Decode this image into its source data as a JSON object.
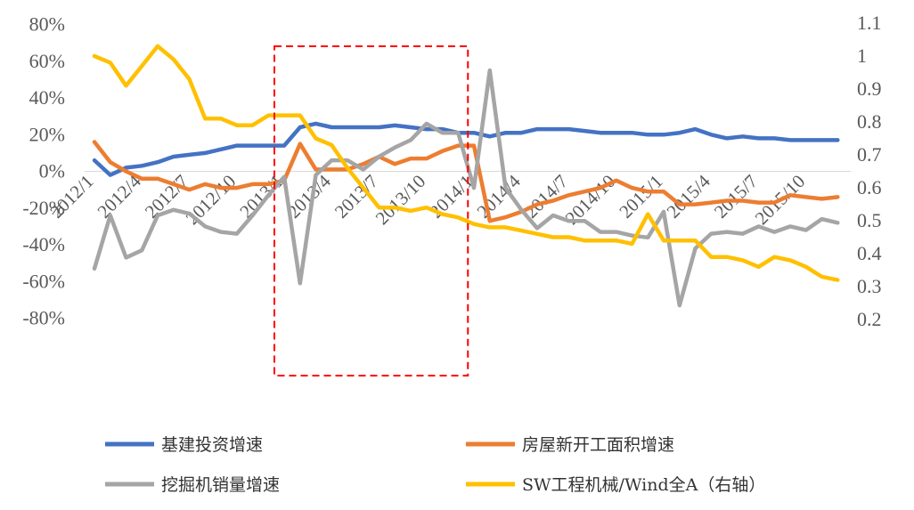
{
  "chart_data": {
    "type": "line",
    "title": "",
    "x": [
      "2012/1",
      "2012/2",
      "2012/3",
      "2012/4",
      "2012/5",
      "2012/6",
      "2012/7",
      "2012/8",
      "2012/9",
      "2012/10",
      "2012/11",
      "2012/12",
      "2013/1",
      "2013/2",
      "2013/3",
      "2013/4",
      "2013/5",
      "2013/6",
      "2013/7",
      "2013/8",
      "2013/9",
      "2013/10",
      "2013/11",
      "2013/12",
      "2014/1",
      "2014/2",
      "2014/3",
      "2014/4",
      "2014/5",
      "2014/6",
      "2014/7",
      "2014/8",
      "2014/9",
      "2014/10",
      "2014/11",
      "2014/12",
      "2015/1",
      "2015/2",
      "2015/3",
      "2015/4",
      "2015/5",
      "2015/6",
      "2015/7",
      "2015/8",
      "2015/9",
      "2015/10",
      "2015/11",
      "2015/12"
    ],
    "x_tick_labels": [
      "2012/1",
      "2012/4",
      "2012/7",
      "2012/10",
      "2013/1",
      "2013/4",
      "2013/7",
      "2013/10",
      "2014/1",
      "2014/4",
      "2014/7",
      "2014/10",
      "2015/1",
      "2015/4",
      "2015/7",
      "2015/10"
    ],
    "y_left": {
      "ylim": [
        -80,
        80
      ],
      "ticks": [
        "80%",
        "60%",
        "40%",
        "20%",
        "0%",
        "-20%",
        "-40%",
        "-60%",
        "-80%"
      ],
      "tick_values": [
        80,
        60,
        40,
        20,
        0,
        -20,
        -40,
        -60,
        -80
      ]
    },
    "y_right": {
      "ylim": [
        0.2,
        1.1
      ],
      "ticks": [
        "1.1",
        "1",
        "0.9",
        "0.8",
        "0.7",
        "0.6",
        "0.5",
        "0.4",
        "0.3",
        "0.2"
      ],
      "tick_values": [
        1.1,
        1.0,
        0.9,
        0.8,
        0.7,
        0.6,
        0.5,
        0.4,
        0.3,
        0.2
      ]
    },
    "series": [
      {
        "name": "基建投资增速",
        "axis": "left",
        "color": "#4472C4",
        "values": [
          6,
          -2,
          2,
          3,
          5,
          8,
          9,
          10,
          12,
          14,
          14,
          14,
          14,
          24,
          26,
          24,
          24,
          24,
          24,
          25,
          24,
          23,
          23,
          21,
          21,
          19,
          21,
          21,
          23,
          23,
          23,
          22,
          21,
          21,
          21,
          20,
          20,
          21,
          23,
          20,
          18,
          19,
          18,
          18,
          17,
          17,
          17,
          17
        ]
      },
      {
        "name": "房屋新开工面积增速",
        "axis": "left",
        "color": "#ED7D31",
        "values": [
          16,
          5,
          0,
          -4,
          -4,
          -7,
          -10,
          -7,
          -9,
          -9,
          -7,
          -7,
          -5,
          15,
          1,
          1,
          1,
          4,
          8,
          4,
          7,
          7,
          11,
          14,
          14,
          -27,
          -25,
          -22,
          -18,
          -16,
          -13,
          -11,
          -9,
          -5,
          -9,
          -11,
          -11,
          -18,
          -18,
          -17,
          -16,
          -16,
          -17,
          -17,
          -13,
          -14,
          -15,
          -14
        ]
      },
      {
        "name": "挖掘机销量增速",
        "axis": "left",
        "color": "#A5A5A5",
        "values": [
          -53,
          -24,
          -47,
          -43,
          -24,
          -21,
          -23,
          -30,
          -33,
          -34,
          -24,
          -13,
          -3,
          -61,
          -2,
          6,
          6,
          1,
          8,
          13,
          17,
          26,
          21,
          21,
          -9,
          55,
          -9,
          -21,
          -31,
          -24,
          -27,
          -27,
          -33,
          -33,
          -35,
          -36,
          -22,
          -73,
          -42,
          -34,
          -33,
          -34,
          -30,
          -33,
          -30,
          -32,
          -26,
          -28
        ]
      },
      {
        "name": "SW工程机械/Wind全A（右轴）",
        "axis": "right",
        "color": "#FFC000",
        "values": [
          1.0,
          0.98,
          0.91,
          0.97,
          1.03,
          0.99,
          0.93,
          0.81,
          0.81,
          0.79,
          0.79,
          0.82,
          0.82,
          0.82,
          0.75,
          0.73,
          0.66,
          0.6,
          0.54,
          0.54,
          0.53,
          0.54,
          0.52,
          0.51,
          0.49,
          0.48,
          0.48,
          0.47,
          0.46,
          0.45,
          0.45,
          0.44,
          0.44,
          0.44,
          0.43,
          0.52,
          0.44,
          0.44,
          0.44,
          0.39,
          0.39,
          0.38,
          0.36,
          0.39,
          0.38,
          0.36,
          0.33,
          0.32
        ]
      }
    ],
    "annotations": [
      {
        "type": "dashed-box",
        "color": "#FF0000",
        "x_start": "2013/1",
        "x_end": "2013/12"
      }
    ],
    "legend_position": "bottom"
  }
}
